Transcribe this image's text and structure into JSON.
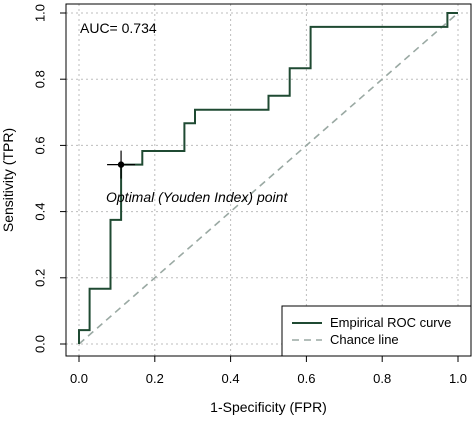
{
  "chart_data": {
    "type": "line",
    "xlabel": "1-Specificity (FPR)",
    "ylabel": "Sensitivity (TPR)",
    "xlim": [
      0,
      1
    ],
    "ylim": [
      0,
      1
    ],
    "xticks": [
      "0.0",
      "0.2",
      "0.4",
      "0.6",
      "0.8",
      "1.0"
    ],
    "yticks": [
      "0.0",
      "0.2",
      "0.4",
      "0.6",
      "0.8",
      "1.0"
    ],
    "grid": true,
    "legend_position": "bottom-right",
    "series": [
      {
        "name": "Empirical ROC curve",
        "color": "#1f4a32",
        "style": "solid-step",
        "x": [
          0,
          0,
          0.028,
          0.028,
          0.083,
          0.083,
          0.111,
          0.111,
          0.167,
          0.167,
          0.278,
          0.278,
          0.306,
          0.306,
          0.5,
          0.5,
          0.556,
          0.556,
          0.611,
          0.611,
          0.972,
          0.972,
          1.0
        ],
        "y": [
          0,
          0.042,
          0.042,
          0.167,
          0.167,
          0.375,
          0.375,
          0.542,
          0.542,
          0.583,
          0.583,
          0.667,
          0.667,
          0.708,
          0.708,
          0.75,
          0.75,
          0.833,
          0.833,
          0.958,
          0.958,
          1.0,
          1.0
        ]
      },
      {
        "name": "Chance line",
        "color": "#9aa9a3",
        "style": "dashed",
        "x": [
          0,
          1
        ],
        "y": [
          0,
          1
        ]
      }
    ],
    "optimal_point": {
      "x": 0.111,
      "y": 0.542
    },
    "annotations": {
      "auc": "AUC= 0.734",
      "optimal_label": "Optimal (Youden Index) point"
    }
  }
}
